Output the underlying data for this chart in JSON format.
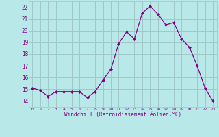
{
  "x": [
    0,
    1,
    2,
    3,
    4,
    5,
    6,
    7,
    8,
    9,
    10,
    11,
    12,
    13,
    14,
    15,
    16,
    17,
    18,
    19,
    20,
    21,
    22,
    23
  ],
  "y": [
    15.1,
    14.9,
    14.4,
    14.8,
    14.8,
    14.8,
    14.8,
    14.3,
    14.8,
    15.8,
    16.7,
    18.9,
    19.9,
    19.3,
    21.5,
    22.1,
    21.4,
    20.5,
    20.7,
    19.3,
    18.6,
    17.0,
    15.1,
    14.0
  ],
  "line_color": "#800080",
  "marker_color": "#800080",
  "bg_color": "#b8e8e8",
  "grid_color": "#a0c8c8",
  "xlabel": "Windchill (Refroidissement éolien,°C)",
  "xlabel_color": "#800080",
  "tick_color": "#800080",
  "ylim": [
    13.5,
    22.5
  ],
  "xlim": [
    -0.5,
    23.5
  ],
  "yticks": [
    14,
    15,
    16,
    17,
    18,
    19,
    20,
    21,
    22
  ],
  "xticks": [
    0,
    1,
    2,
    3,
    4,
    5,
    6,
    7,
    8,
    9,
    10,
    11,
    12,
    13,
    14,
    15,
    16,
    17,
    18,
    19,
    20,
    21,
    22,
    23
  ]
}
